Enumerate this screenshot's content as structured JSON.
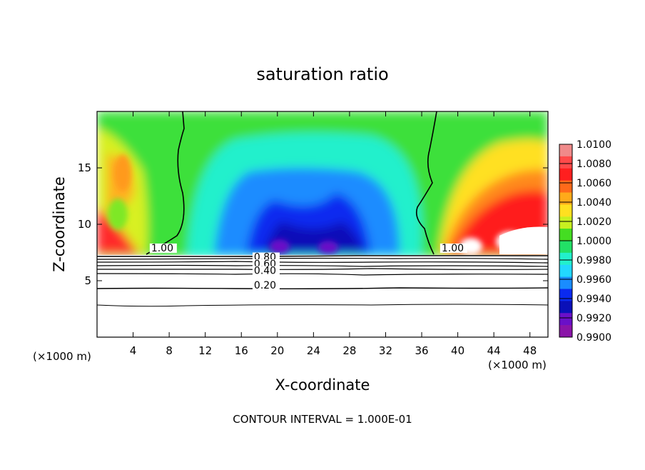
{
  "chart_data": {
    "type": "heatmap",
    "title": "saturation ratio",
    "xlabel": "X-coordinate",
    "ylabel": "Z-coordinate",
    "x_unit_left": "(×1000 m)",
    "x_unit_right": "(×1000 m)",
    "footer": "CONTOUR INTERVAL = 1.000E-01",
    "xlim": [
      0,
      50
    ],
    "ylim": [
      0,
      20
    ],
    "xticks": [
      4,
      8,
      12,
      16,
      20,
      24,
      28,
      32,
      36,
      40,
      44,
      48
    ],
    "yticks": [
      5,
      10,
      15
    ],
    "colorbar": {
      "labels": [
        "1.0100",
        "1.0080",
        "1.0060",
        "1.0040",
        "1.0020",
        "1.0000",
        "0.9980",
        "0.9960",
        "0.9940",
        "0.9920",
        "0.9900"
      ],
      "min": 0.99,
      "max": 1.01,
      "colors": [
        "#f08a8a",
        "#ff4a4a",
        "#ff1f1f",
        "#ff6a1a",
        "#ffaa1a",
        "#ffe020",
        "#c8f020",
        "#44dd22",
        "#22e066",
        "#22f0cc",
        "#22d8ff",
        "#1a8cff",
        "#0a2af0",
        "#0a10b8",
        "#6a10c8",
        "#8a14a8"
      ]
    },
    "contour_labels": [
      {
        "text": "1.00",
        "x": 6.0,
        "z": 7.6
      },
      {
        "text": "1.00",
        "x": 38.2,
        "z": 7.6
      },
      {
        "text": "0.80",
        "x": 17.4,
        "z": 6.8
      },
      {
        "text": "0.60",
        "x": 17.4,
        "z": 6.2
      },
      {
        "text": "0.40",
        "x": 17.4,
        "z": 5.6
      },
      {
        "text": "0.20",
        "x": 17.4,
        "z": 4.3
      }
    ],
    "contour_levels": [
      0.2,
      0.4,
      0.6,
      0.8,
      1.0
    ],
    "grid": false,
    "legend": "right"
  }
}
